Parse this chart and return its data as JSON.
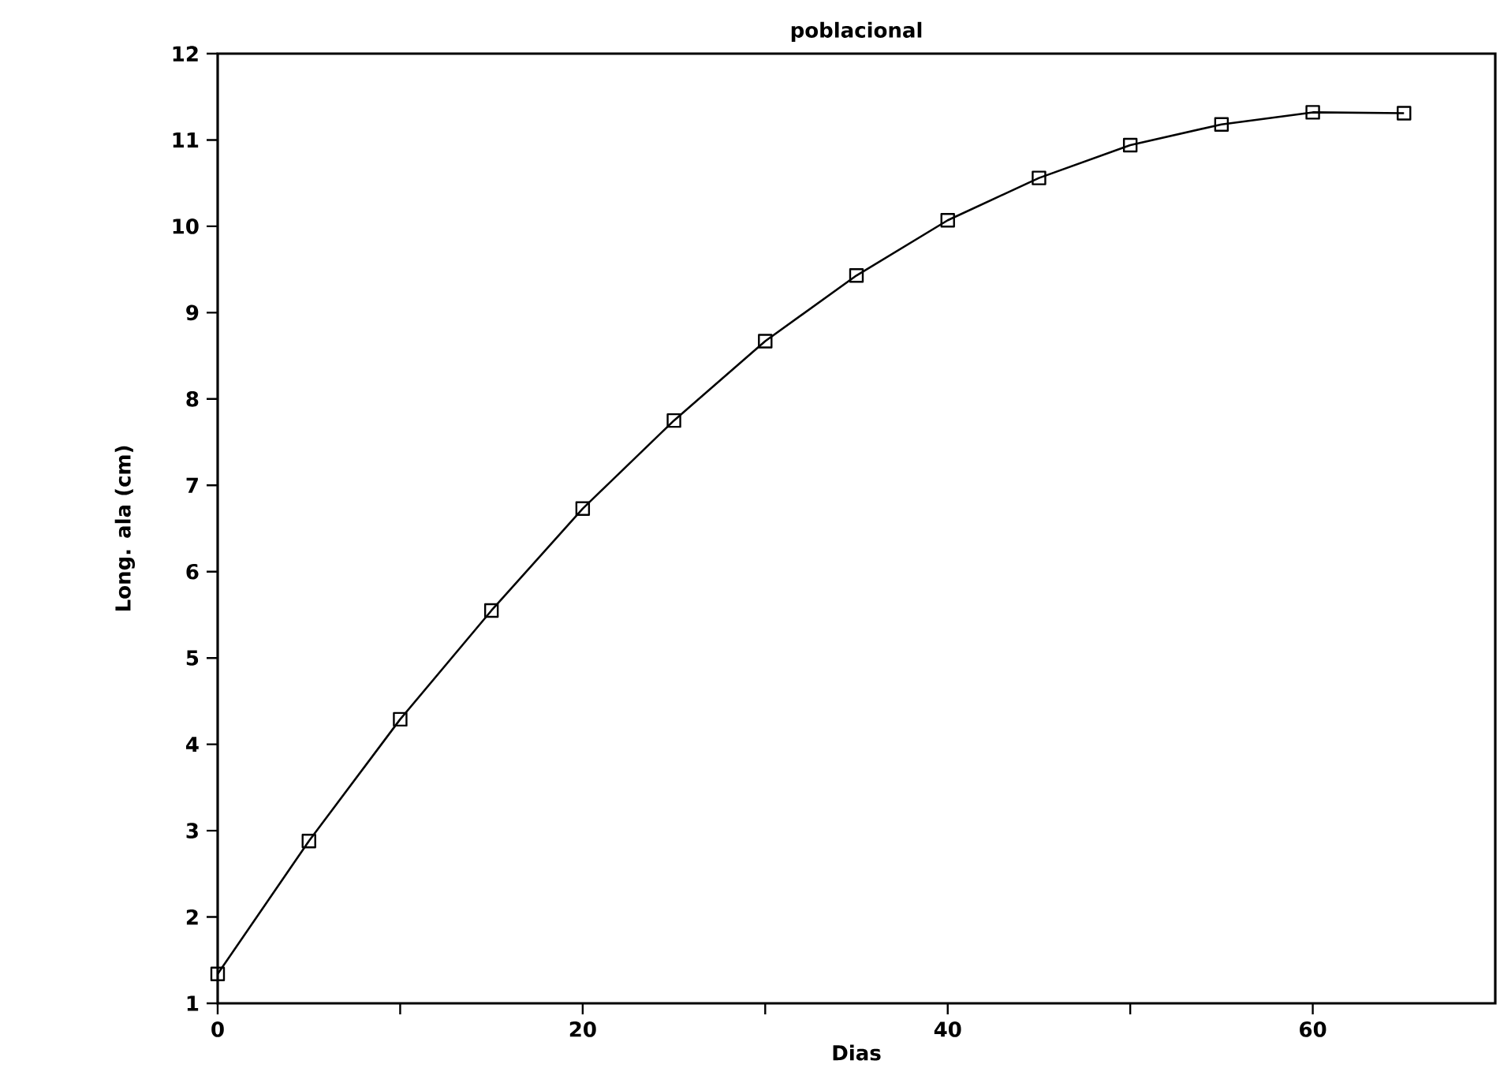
{
  "chart_data": {
    "type": "line",
    "title": "poblacional",
    "xlabel": "Dias",
    "ylabel": "Long. ala (cm)",
    "x": [
      0,
      5,
      10,
      15,
      20,
      25,
      30,
      35,
      40,
      45,
      50,
      55,
      60,
      65
    ],
    "series": [
      {
        "color": "#000000",
        "values": [
          1.34,
          2.88,
          4.29,
          5.55,
          6.73,
          7.75,
          8.67,
          9.43,
          10.07,
          10.56,
          10.94,
          11.18,
          11.32,
          11.31
        ]
      }
    ],
    "xlim": [
      0,
      70
    ],
    "ylim": [
      1,
      12
    ],
    "xticks": [
      0,
      {
        "value": 10,
        "label": null
      },
      20,
      {
        "value": 30,
        "label": null
      },
      40,
      {
        "value": 50,
        "label": null
      },
      60
    ],
    "yticks": [
      1,
      2,
      3,
      4,
      5,
      6,
      7,
      8,
      9,
      10,
      11,
      12
    ],
    "grid": false,
    "marker": "square",
    "line_style": "solid"
  }
}
